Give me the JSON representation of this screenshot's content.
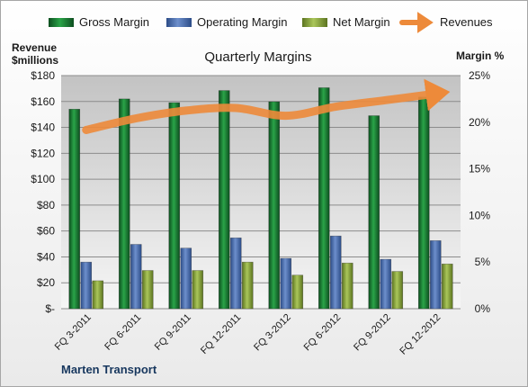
{
  "chart_data": {
    "type": "bar",
    "title": "Quarterly Margins",
    "company": "Marten Transport",
    "ylabel_left": [
      "Revenue",
      "$millions"
    ],
    "ylabel_right": "Margin %",
    "categories": [
      "FQ 3-2011",
      "FQ 6-2011",
      "FQ 9-2011",
      "FQ 12-2011",
      "FQ 3-2012",
      "FQ 6-2012",
      "FQ 9-2012",
      "FQ 12-2012"
    ],
    "left_axis": {
      "min": 0,
      "max": 180,
      "ticks": [
        "$-",
        "$20",
        "$40",
        "$60",
        "$80",
        "$100",
        "$120",
        "$140",
        "$160",
        "$180"
      ]
    },
    "right_axis": {
      "min": 0,
      "max": 0.25,
      "ticks": [
        "0%",
        "5%",
        "10%",
        "15%",
        "20%",
        "25%"
      ]
    },
    "series": [
      {
        "name": "Gross Margin",
        "axis": "right",
        "color": "#1e7a35",
        "values": [
          0.214,
          0.225,
          0.221,
          0.234,
          0.222,
          0.237,
          0.207,
          0.227
        ]
      },
      {
        "name": "Operating Margin",
        "axis": "right",
        "color": "#4a6fb0",
        "values": [
          0.05,
          0.069,
          0.065,
          0.076,
          0.054,
          0.078,
          0.053,
          0.073
        ]
      },
      {
        "name": "Net Margin",
        "axis": "right",
        "color": "#8faa3e",
        "values": [
          0.03,
          0.041,
          0.041,
          0.05,
          0.036,
          0.049,
          0.04,
          0.048
        ]
      },
      {
        "name": "Revenues",
        "axis": "left",
        "type": "line",
        "color": "#ed8a3a",
        "values": [
          138,
          147,
          153,
          155,
          149,
          156,
          161,
          166
        ]
      }
    ]
  }
}
